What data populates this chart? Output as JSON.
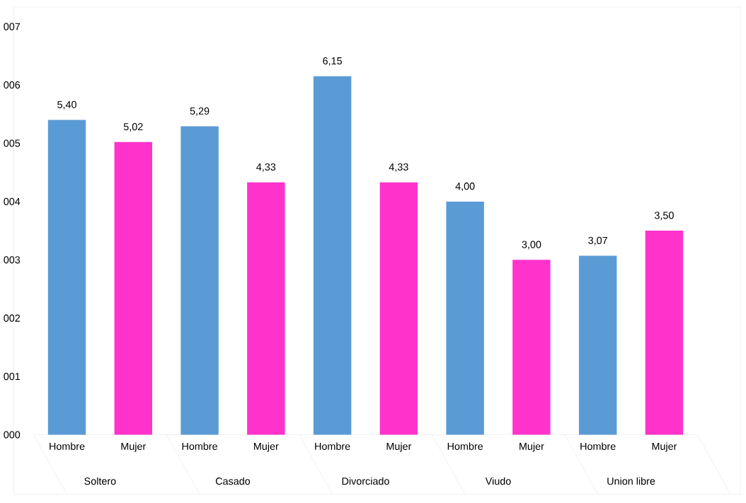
{
  "chart_data": {
    "type": "bar",
    "categories": [
      "Hombre",
      "Mujer",
      "Hombre",
      "Mujer",
      "Hombre",
      "Mujer",
      "Hombre",
      "Mujer",
      "Hombre",
      "Mujer"
    ],
    "values": [
      5.4,
      5.02,
      5.29,
      4.33,
      6.15,
      4.33,
      4.0,
      3.0,
      3.07,
      3.5
    ],
    "value_labels": [
      "5,40",
      "5,02",
      "5,29",
      "4,33",
      "6,15",
      "4,33",
      "4,00",
      "3,00",
      "3,07",
      "3,50"
    ],
    "colors": [
      "#5b9bd5",
      "#ff33cc",
      "#5b9bd5",
      "#ff33cc",
      "#5b9bd5",
      "#ff33cc",
      "#5b9bd5",
      "#ff33cc",
      "#5b9bd5",
      "#ff33cc"
    ],
    "annotations": [
      "Soltero",
      "Casado",
      "Divorciado",
      "Viudo",
      "Union libre"
    ],
    "ylim": [
      0,
      7
    ],
    "yticks": [
      {
        "value": 0,
        "label": "000"
      },
      {
        "value": 1,
        "label": "001"
      },
      {
        "value": 2,
        "label": "002"
      },
      {
        "value": 3,
        "label": "003"
      },
      {
        "value": 4,
        "label": "004"
      },
      {
        "value": 5,
        "label": "005"
      },
      {
        "value": 6,
        "label": "006"
      },
      {
        "value": 7,
        "label": "007"
      }
    ]
  }
}
